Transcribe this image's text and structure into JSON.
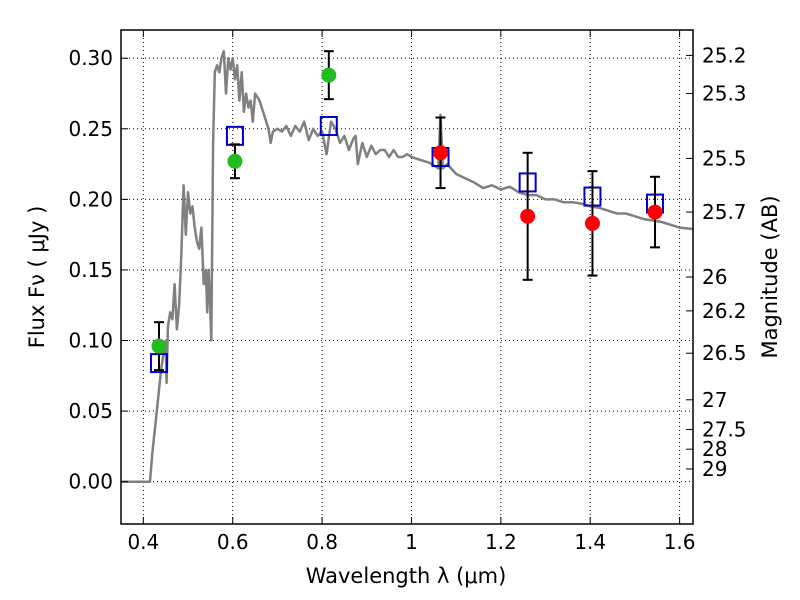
{
  "chart_data": {
    "type": "scatter",
    "xlabel": "Wavelength  λ (μm)",
    "ylabel": "Flux  Fν  ( μJy )",
    "ylabel_right": "Magnitude (AB)",
    "xlim": [
      0.35,
      1.63
    ],
    "ylim": [
      -0.03,
      0.32
    ],
    "grid": true,
    "x_ticks": [
      0.4,
      0.6,
      0.8,
      1.0,
      1.2,
      1.4,
      1.6
    ],
    "x_tick_labels": [
      "0.4",
      "0.6",
      "0.8",
      "1",
      "1.2",
      "1.4",
      "1.6"
    ],
    "y_ticks": [
      0.0,
      0.05,
      0.1,
      0.15,
      0.2,
      0.25,
      0.3
    ],
    "y_tick_labels": [
      "0.00",
      "0.05",
      "0.10",
      "0.15",
      "0.20",
      "0.25",
      "0.30"
    ],
    "right_ticks": [
      {
        "label": "25.2",
        "flux": 0.302
      },
      {
        "label": "25.3",
        "flux": 0.275
      },
      {
        "label": "25.5",
        "flux": 0.229
      },
      {
        "label": "25.7",
        "flux": 0.191
      },
      {
        "label": "26",
        "flux": 0.145
      },
      {
        "label": "26.2",
        "flux": 0.121
      },
      {
        "label": "26.5",
        "flux": 0.091
      },
      {
        "label": "27",
        "flux": 0.058
      },
      {
        "label": "27.5",
        "flux": 0.037
      },
      {
        "label": "28",
        "flux": 0.023
      },
      {
        "label": "29",
        "flux": 0.009
      }
    ],
    "model_sed": {
      "color": "#808080",
      "x": [
        0.35,
        0.4,
        0.41,
        0.415,
        0.42,
        0.43,
        0.44,
        0.45,
        0.452,
        0.455,
        0.46,
        0.465,
        0.47,
        0.475,
        0.48,
        0.485,
        0.49,
        0.495,
        0.5,
        0.505,
        0.51,
        0.515,
        0.52,
        0.525,
        0.53,
        0.535,
        0.54,
        0.543,
        0.546,
        0.549,
        0.552,
        0.556,
        0.56,
        0.565,
        0.57,
        0.575,
        0.58,
        0.585,
        0.59,
        0.595,
        0.6,
        0.605,
        0.61,
        0.615,
        0.62,
        0.625,
        0.63,
        0.635,
        0.64,
        0.645,
        0.65,
        0.66,
        0.67,
        0.68,
        0.685,
        0.69,
        0.7,
        0.71,
        0.72,
        0.73,
        0.74,
        0.75,
        0.76,
        0.77,
        0.78,
        0.79,
        0.8,
        0.81,
        0.82,
        0.83,
        0.84,
        0.85,
        0.86,
        0.87,
        0.875,
        0.88,
        0.89,
        0.9,
        0.91,
        0.92,
        0.93,
        0.94,
        0.95,
        0.96,
        0.97,
        0.98,
        0.99,
        1.0,
        1.02,
        1.04,
        1.06,
        1.065,
        1.07,
        1.08,
        1.1,
        1.12,
        1.14,
        1.16,
        1.18,
        1.2,
        1.22,
        1.24,
        1.26,
        1.28,
        1.3,
        1.32,
        1.34,
        1.36,
        1.38,
        1.4,
        1.42,
        1.44,
        1.46,
        1.48,
        1.5,
        1.52,
        1.54,
        1.56,
        1.58,
        1.6,
        1.63
      ],
      "y": [
        0.0,
        0.0,
        0.0,
        0.0,
        0.02,
        0.05,
        0.08,
        0.1,
        0.07,
        0.11,
        0.12,
        0.115,
        0.14,
        0.108,
        0.125,
        0.16,
        0.21,
        0.175,
        0.205,
        0.19,
        0.195,
        0.18,
        0.17,
        0.165,
        0.18,
        0.14,
        0.15,
        0.12,
        0.15,
        0.13,
        0.1,
        0.24,
        0.29,
        0.295,
        0.29,
        0.3,
        0.305,
        0.275,
        0.3,
        0.292,
        0.3,
        0.285,
        0.295,
        0.27,
        0.29,
        0.262,
        0.275,
        0.265,
        0.27,
        0.255,
        0.275,
        0.27,
        0.26,
        0.25,
        0.24,
        0.248,
        0.25,
        0.248,
        0.252,
        0.245,
        0.252,
        0.248,
        0.255,
        0.242,
        0.25,
        0.245,
        0.248,
        0.232,
        0.255,
        0.25,
        0.24,
        0.245,
        0.235,
        0.243,
        0.245,
        0.225,
        0.24,
        0.23,
        0.238,
        0.232,
        0.235,
        0.235,
        0.23,
        0.235,
        0.23,
        0.23,
        0.232,
        0.23,
        0.228,
        0.226,
        0.222,
        0.26,
        0.222,
        0.225,
        0.218,
        0.215,
        0.212,
        0.208,
        0.21,
        0.207,
        0.209,
        0.205,
        0.203,
        0.203,
        0.2,
        0.2,
        0.198,
        0.198,
        0.197,
        0.195,
        0.194,
        0.192,
        0.19,
        0.19,
        0.188,
        0.186,
        0.185,
        0.184,
        0.182,
        0.18,
        0.179
      ]
    },
    "model_photometry": {
      "marker": "open-square",
      "color": "#0000cc",
      "x": [
        0.435,
        0.605,
        0.815,
        1.065,
        1.26,
        1.405,
        1.545
      ],
      "y": [
        0.084,
        0.245,
        0.252,
        0.23,
        0.212,
        0.202,
        0.197
      ]
    },
    "observed_optical": {
      "marker": "filled-circle",
      "color": "#22bb22",
      "x": [
        0.435,
        0.605,
        0.815
      ],
      "y": [
        0.096,
        0.227,
        0.288
      ],
      "err": [
        0.017,
        0.012,
        0.017
      ]
    },
    "observed_nir": {
      "marker": "filled-circle",
      "color": "#ff0000",
      "x": [
        1.065,
        1.26,
        1.405,
        1.545
      ],
      "y": [
        0.233,
        0.188,
        0.183,
        0.191
      ],
      "err": [
        0.025,
        0.045,
        0.037,
        0.025
      ]
    }
  }
}
